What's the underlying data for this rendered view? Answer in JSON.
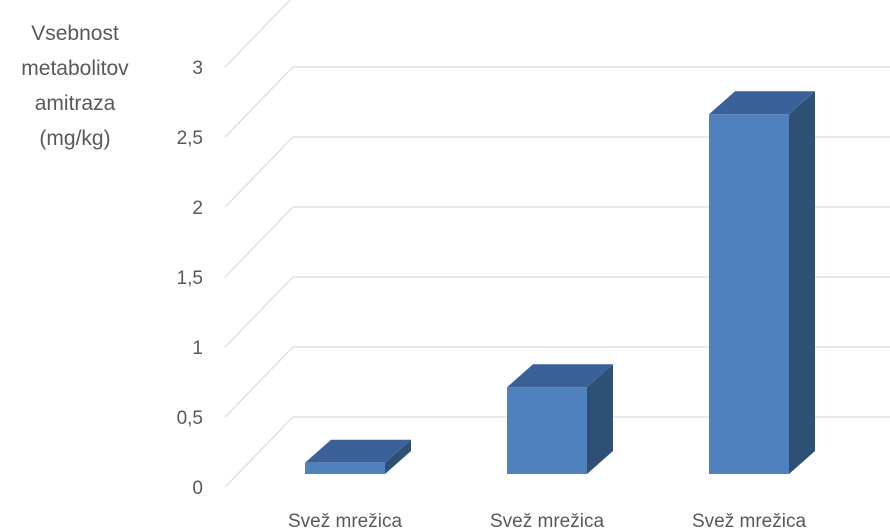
{
  "chart_data": {
    "type": "bar",
    "ylabel_lines": [
      "Vsebnost",
      "metabolitov",
      "amitraza",
      "(mg/kg)"
    ],
    "categories": [
      "Svež mrežica",
      "Svež mrežica",
      "Svež mrežica"
    ],
    "values": [
      0.08,
      0.62,
      2.57
    ],
    "yticks": [
      "0",
      "0,5",
      "1",
      "1,5",
      "2",
      "2,5",
      "3"
    ],
    "ylim": [
      0,
      3
    ],
    "grid": true,
    "colors": {
      "front": "#4E81BD",
      "side": "#2F5075",
      "top": "#3A6298",
      "grid": "#D9D9D9"
    }
  }
}
